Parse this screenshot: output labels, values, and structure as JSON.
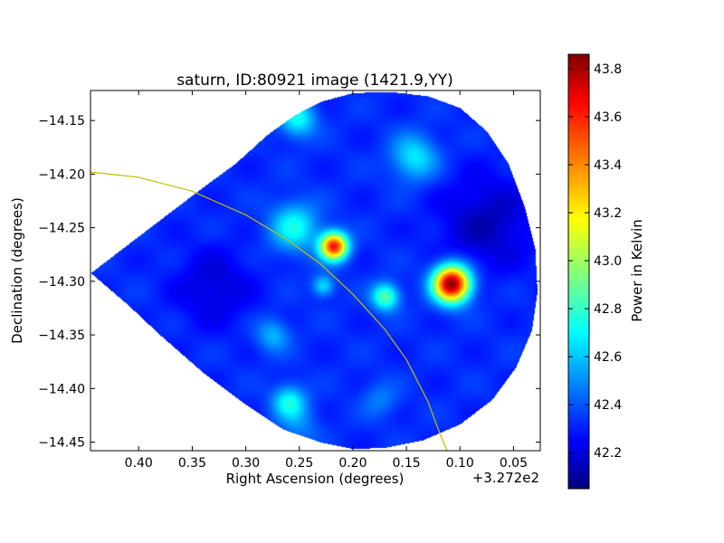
{
  "chart_data": {
    "type": "heatmap",
    "title": "saturn, ID:80921 image (1421.9,YY)",
    "xlabel": "Right Ascension (degrees)",
    "ylabel": "Declination (degrees)",
    "x_offset_label": "+3.272e2",
    "colorbar_label": "Power in Kelvin",
    "x_ticks": [
      "0.40",
      "0.35",
      "0.30",
      "0.25",
      "0.20",
      "0.15",
      "0.10",
      "0.05"
    ],
    "x_tick_values": [
      0.4,
      0.35,
      0.3,
      0.25,
      0.2,
      0.15,
      0.1,
      0.05
    ],
    "x_range": [
      0.445,
      0.025
    ],
    "y_ticks": [
      "−14.15",
      "−14.20",
      "−14.25",
      "−14.30",
      "−14.35",
      "−14.40",
      "−14.45"
    ],
    "y_tick_values": [
      -14.15,
      -14.2,
      -14.25,
      -14.3,
      -14.35,
      -14.4,
      -14.45
    ],
    "y_range": [
      -14.458,
      -14.122
    ],
    "colorbar_ticks": [
      "42.2",
      "42.4",
      "42.6",
      "42.8",
      "43.0",
      "43.2",
      "43.4",
      "43.6",
      "43.8"
    ],
    "colorbar_tick_values": [
      42.2,
      42.4,
      42.6,
      42.8,
      43.0,
      43.2,
      43.4,
      43.6,
      43.8
    ],
    "colorbar_range": [
      42.05,
      43.86
    ],
    "colormap": [
      "#00007f",
      "#0000ff",
      "#007fff",
      "#00ffff",
      "#7fff7f",
      "#ffff00",
      "#ff7f00",
      "#ff0000",
      "#7f0000"
    ],
    "background_level": 42.35,
    "map_boundary": [
      [
        0.445,
        -14.292
      ],
      [
        0.39,
        -14.25
      ],
      [
        0.34,
        -14.212
      ],
      [
        0.31,
        -14.19
      ],
      [
        0.28,
        -14.163
      ],
      [
        0.255,
        -14.145
      ],
      [
        0.23,
        -14.132
      ],
      [
        0.2,
        -14.124
      ],
      [
        0.165,
        -14.123
      ],
      [
        0.13,
        -14.127
      ],
      [
        0.1,
        -14.138
      ],
      [
        0.075,
        -14.16
      ],
      [
        0.055,
        -14.19
      ],
      [
        0.04,
        -14.23
      ],
      [
        0.03,
        -14.27
      ],
      [
        0.028,
        -14.31
      ],
      [
        0.033,
        -14.345
      ],
      [
        0.048,
        -14.38
      ],
      [
        0.07,
        -14.41
      ],
      [
        0.1,
        -14.433
      ],
      [
        0.135,
        -14.448
      ],
      [
        0.17,
        -14.455
      ],
      [
        0.2,
        -14.456
      ],
      [
        0.23,
        -14.45
      ],
      [
        0.265,
        -14.438
      ],
      [
        0.3,
        -14.415
      ],
      [
        0.34,
        -14.385
      ],
      [
        0.38,
        -14.35
      ],
      [
        0.41,
        -14.322
      ],
      [
        0.445,
        -14.292
      ]
    ],
    "sources": [
      {
        "ra": 0.108,
        "dec": -14.302,
        "peak": 43.85,
        "width": 0.012
      },
      {
        "ra": 0.218,
        "dec": -14.267,
        "peak": 43.6,
        "width": 0.009
      },
      {
        "ra": 0.255,
        "dec": -14.249,
        "peak": 42.75,
        "width": 0.016
      },
      {
        "ra": 0.143,
        "dec": -14.184,
        "peak": 42.7,
        "width": 0.015
      },
      {
        "ra": 0.17,
        "dec": -14.314,
        "peak": 42.9,
        "width": 0.009
      },
      {
        "ra": 0.252,
        "dec": -14.148,
        "peak": 42.75,
        "width": 0.012
      },
      {
        "ra": 0.228,
        "dec": -14.304,
        "peak": 42.7,
        "width": 0.007
      },
      {
        "ra": 0.26,
        "dec": -14.412,
        "peak": 42.75,
        "width": 0.011
      },
      {
        "ra": 0.275,
        "dec": -14.35,
        "peak": 42.6,
        "width": 0.011
      },
      {
        "ra": 0.175,
        "dec": -14.41,
        "peak": 42.5,
        "width": 0.012
      },
      {
        "ra": 0.25,
        "dec": -14.435,
        "peak": 42.5,
        "width": 0.013
      }
    ],
    "cold_regions": [
      {
        "ra": 0.075,
        "dec": -14.245,
        "depth": 0.2,
        "width": 0.03
      },
      {
        "ra": 0.33,
        "dec": -14.305,
        "depth": 0.15,
        "width": 0.025
      }
    ],
    "overlay_arc": {
      "color": "#bfbf00",
      "points": [
        [
          0.445,
          -14.198
        ],
        [
          0.4,
          -14.203
        ],
        [
          0.35,
          -14.216
        ],
        [
          0.3,
          -14.238
        ],
        [
          0.26,
          -14.262
        ],
        [
          0.23,
          -14.284
        ],
        [
          0.2,
          -14.312
        ],
        [
          0.17,
          -14.345
        ],
        [
          0.15,
          -14.373
        ],
        [
          0.13,
          -14.412
        ],
        [
          0.118,
          -14.444
        ],
        [
          0.112,
          -14.458
        ]
      ]
    }
  }
}
